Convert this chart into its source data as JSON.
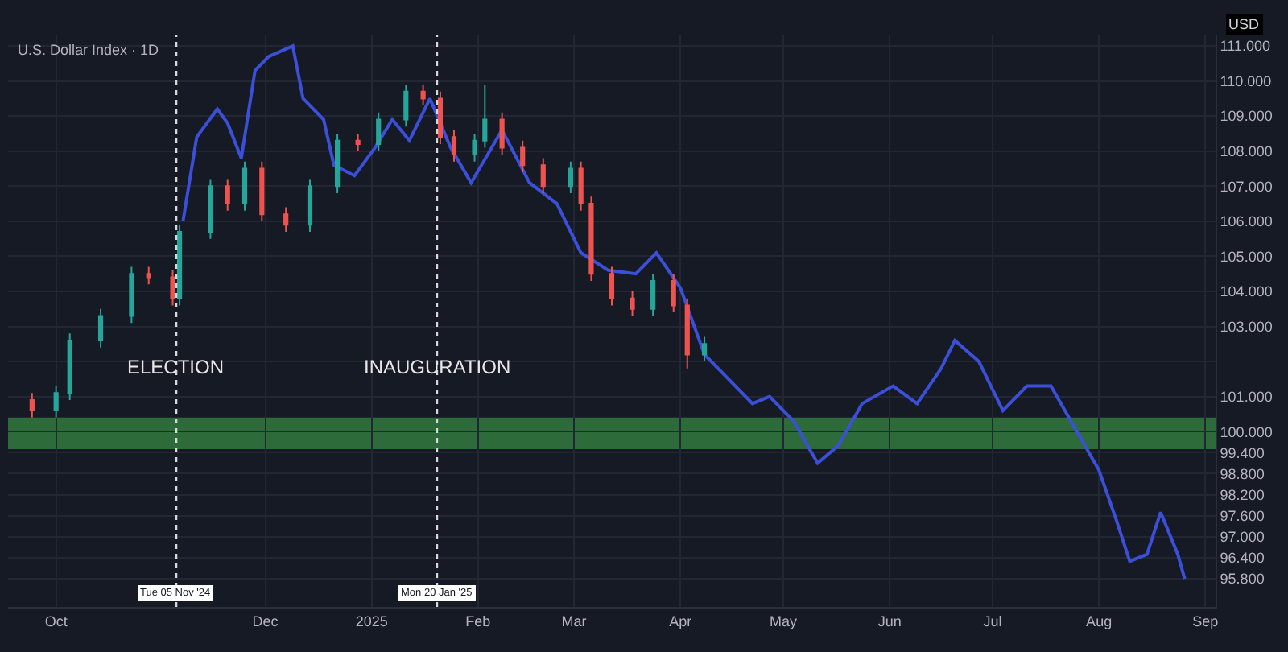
{
  "chart_data": {
    "type": "candlestick",
    "title": "U.S. Dollar Index · 1D",
    "ylabel": "USD",
    "xlim": [
      "2024-09-17",
      "2025-09-04"
    ],
    "xticks": [
      {
        "value": "2024-10-01",
        "label": "Oct"
      },
      {
        "value": "2024-12-01",
        "label": "Dec"
      },
      {
        "value": "2025-01-01",
        "label": "2025"
      },
      {
        "value": "2025-02-01",
        "label": "Feb"
      },
      {
        "value": "2025-03-01",
        "label": "Mar"
      },
      {
        "value": "2025-04-01",
        "label": "Apr"
      },
      {
        "value": "2025-05-01",
        "label": "May"
      },
      {
        "value": "2025-06-01",
        "label": "Jun"
      },
      {
        "value": "2025-07-01",
        "label": "Jul"
      },
      {
        "value": "2025-08-01",
        "label": "Aug"
      },
      {
        "value": "2025-09-01",
        "label": "Sep"
      }
    ],
    "ylim": [
      95.0,
      111.3
    ],
    "yticks": [
      {
        "value": 111,
        "label": "111.000"
      },
      {
        "value": 110,
        "label": "110.000"
      },
      {
        "value": 109,
        "label": "109.000"
      },
      {
        "value": 108,
        "label": "108.000"
      },
      {
        "value": 107,
        "label": "107.000"
      },
      {
        "value": 106,
        "label": "106.000"
      },
      {
        "value": 105,
        "label": "105.000"
      },
      {
        "value": 104,
        "label": "104.000"
      },
      {
        "value": 103,
        "label": "103.000"
      },
      {
        "value": 102,
        "label": null
      },
      {
        "value": 101,
        "label": "101.000"
      },
      {
        "value": 100,
        "label": "100.000"
      },
      {
        "value": 99.4,
        "label": "99.400"
      },
      {
        "value": 98.8,
        "label": "98.800"
      },
      {
        "value": 98.2,
        "label": "98.200"
      },
      {
        "value": 97.6,
        "label": "97.600"
      },
      {
        "value": 97.0,
        "label": "97.000"
      },
      {
        "value": 96.4,
        "label": "96.400"
      },
      {
        "value": 95.8,
        "label": "95.800"
      }
    ],
    "grid": true,
    "series": [
      {
        "x": [
          "2024-09-24",
          "2024-10-01",
          "2024-10-05",
          "2024-10-14",
          "2024-10-23",
          "2024-10-28",
          "2024-11-04",
          "2024-11-06",
          "2024-11-15",
          "2024-11-20",
          "2024-11-25",
          "2024-11-30",
          "2024-12-07",
          "2024-12-14",
          "2024-12-22",
          "2024-12-28",
          "2025-01-03",
          "2025-01-11",
          "2025-01-16",
          "2025-01-21",
          "2025-01-25",
          "2025-01-31",
          "2025-02-03",
          "2025-02-08",
          "2025-02-14",
          "2025-02-20",
          "2025-02-28",
          "2025-03-03",
          "2025-03-06",
          "2025-03-12",
          "2025-03-18",
          "2025-03-24",
          "2025-03-30",
          "2025-04-03",
          "2025-04-08"
        ],
        "ohlc": [
          [
            100.9,
            101.1,
            100.4,
            100.6
          ],
          [
            100.6,
            101.3,
            100.4,
            101.1
          ],
          [
            101.1,
            102.8,
            100.9,
            102.6
          ],
          [
            102.6,
            103.5,
            102.4,
            103.3
          ],
          [
            103.3,
            104.7,
            103.1,
            104.5
          ],
          [
            104.5,
            104.7,
            104.2,
            104.4
          ],
          [
            104.4,
            104.6,
            103.6,
            103.8
          ],
          [
            103.8,
            105.9,
            103.6,
            105.7
          ],
          [
            105.7,
            107.2,
            105.5,
            107.0
          ],
          [
            107.0,
            107.2,
            106.3,
            106.5
          ],
          [
            106.5,
            107.7,
            106.3,
            107.5
          ],
          [
            107.5,
            107.7,
            106.0,
            106.2
          ],
          [
            106.2,
            106.4,
            105.7,
            105.9
          ],
          [
            105.9,
            107.2,
            105.7,
            107.0
          ],
          [
            107.0,
            108.5,
            106.8,
            108.3
          ],
          [
            108.3,
            108.5,
            108.0,
            108.2
          ],
          [
            108.2,
            109.1,
            108.0,
            108.9
          ],
          [
            108.9,
            109.9,
            108.7,
            109.7
          ],
          [
            109.7,
            109.9,
            109.3,
            109.5
          ],
          [
            109.5,
            109.7,
            108.2,
            108.4
          ],
          [
            108.4,
            108.6,
            107.7,
            107.9
          ],
          [
            107.9,
            108.5,
            107.7,
            108.3
          ],
          [
            108.3,
            109.9,
            108.1,
            108.9
          ],
          [
            108.9,
            109.1,
            107.9,
            108.1
          ],
          [
            108.1,
            108.3,
            107.4,
            107.6
          ],
          [
            107.6,
            107.8,
            106.8,
            107.0
          ],
          [
            107.0,
            107.7,
            106.8,
            107.5
          ],
          [
            107.5,
            107.7,
            106.3,
            106.5
          ],
          [
            106.5,
            106.7,
            104.3,
            104.5
          ],
          [
            104.5,
            104.7,
            103.6,
            103.8
          ],
          [
            103.8,
            104.0,
            103.3,
            103.5
          ],
          [
            103.5,
            104.5,
            103.3,
            104.3
          ],
          [
            104.3,
            104.5,
            103.4,
            103.6
          ],
          [
            103.6,
            103.8,
            101.8,
            102.2
          ],
          [
            102.2,
            102.7,
            102.0,
            102.5
          ]
        ],
        "colors": [
          "#ef5350",
          "#26a69a",
          "#26a69a",
          "#26a69a",
          "#26a69a",
          "#ef5350",
          "#ef5350",
          "#26a69a",
          "#26a69a",
          "#ef5350",
          "#26a69a",
          "#ef5350",
          "#ef5350",
          "#26a69a",
          "#26a69a",
          "#ef5350",
          "#26a69a",
          "#26a69a",
          "#ef5350",
          "#ef5350",
          "#ef5350",
          "#26a69a",
          "#26a69a",
          "#ef5350",
          "#ef5350",
          "#ef5350",
          "#26a69a",
          "#ef5350",
          "#ef5350",
          "#ef5350",
          "#ef5350",
          "#26a69a",
          "#ef5350",
          "#ef5350",
          "#26a69a"
        ]
      },
      {
        "type": "line",
        "color": "#3b4fd8",
        "x": [
          "2024-11-07",
          "2024-11-11",
          "2024-11-17",
          "2024-11-20",
          "2024-11-24",
          "2024-11-28",
          "2024-12-02",
          "2024-12-09",
          "2024-12-12",
          "2024-12-18",
          "2024-12-21",
          "2024-12-27",
          "2025-01-02",
          "2025-01-07",
          "2025-01-12",
          "2025-01-18",
          "2025-01-24",
          "2025-01-30",
          "2025-02-08",
          "2025-02-16",
          "2025-02-24",
          "2025-03-03",
          "2025-03-11",
          "2025-03-19",
          "2025-03-25",
          "2025-04-01",
          "2025-04-08",
          "2025-04-15",
          "2025-04-22",
          "2025-04-27",
          "2025-05-04",
          "2025-05-11",
          "2025-05-17",
          "2025-05-24",
          "2025-06-02",
          "2025-06-09",
          "2025-06-16",
          "2025-06-20",
          "2025-06-27",
          "2025-07-04",
          "2025-07-11",
          "2025-07-18",
          "2025-07-25",
          "2025-08-01",
          "2025-08-06",
          "2025-08-10",
          "2025-08-15",
          "2025-08-19",
          "2025-08-24",
          "2025-08-26"
        ],
        "values": [
          106.0,
          108.4,
          109.2,
          108.8,
          107.8,
          110.3,
          110.7,
          111.0,
          109.5,
          108.9,
          107.6,
          107.3,
          108.1,
          108.9,
          108.3,
          109.5,
          108.1,
          107.1,
          108.6,
          107.1,
          106.5,
          105.1,
          104.6,
          104.5,
          105.1,
          104.1,
          102.2,
          101.5,
          100.8,
          101.0,
          100.3,
          99.1,
          99.6,
          100.8,
          101.3,
          100.8,
          101.8,
          102.6,
          102.0,
          100.6,
          101.3,
          101.3,
          100.1,
          98.9,
          97.5,
          96.3,
          96.5,
          97.7,
          96.5,
          95.8
        ]
      }
    ],
    "annotations": [
      {
        "text": "Tue 05 Nov '24",
        "x": "2024-11-05",
        "y": 95.0
      },
      {
        "text": "Mon 20 Jan '25",
        "x": "2025-01-20",
        "y": 95.0
      }
    ],
    "bands": [
      {
        "axis": "y",
        "from": 99.5,
        "to": 100.4,
        "color": "#2e6b3a"
      }
    ],
    "ref_lines": [
      {
        "axis": "x",
        "value": "2024-11-05",
        "label": "ELECTION",
        "color": "#d8d8d8",
        "line_style": "dotted"
      },
      {
        "axis": "x",
        "value": "2025-01-20",
        "label": "INAUGURATION",
        "color": "#d8d8d8",
        "line_style": "dotted"
      }
    ]
  }
}
